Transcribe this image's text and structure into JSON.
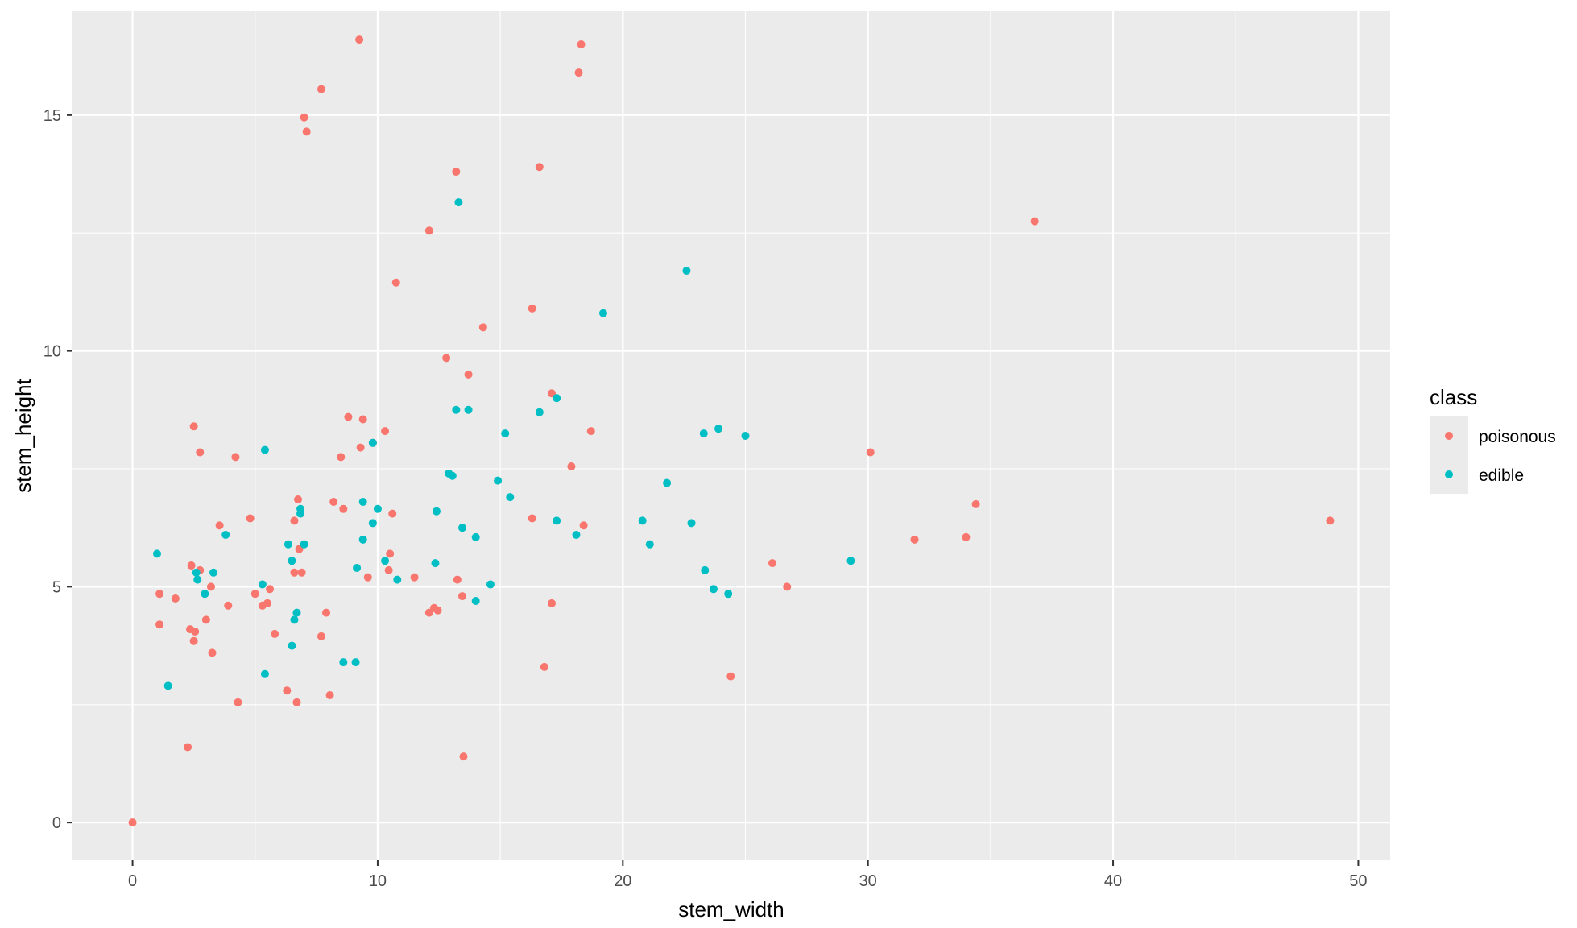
{
  "chart_data": {
    "type": "scatter",
    "title": "",
    "xlabel": "stem_width",
    "ylabel": "stem_height",
    "xlim": [
      -2.45,
      51.3
    ],
    "ylim": [
      -0.8,
      17.2
    ],
    "x_ticks": [
      0,
      10,
      20,
      30,
      40,
      50
    ],
    "x_minor_ticks": [
      5,
      15,
      25,
      35,
      45
    ],
    "y_ticks": [
      0,
      5,
      10,
      15
    ],
    "y_minor_ticks": [
      2.5,
      7.5,
      12.5
    ],
    "grid": true,
    "background": "#EBEBEB",
    "legend": {
      "title": "class",
      "position": "right",
      "entries": [
        {
          "label": "poisonous",
          "color": "#F8766D"
        },
        {
          "label": "edible",
          "color": "#00BFC4"
        }
      ]
    },
    "series": [
      {
        "name": "poisonous",
        "color": "#F8766D",
        "points": [
          [
            9.25,
            16.6
          ],
          [
            18.3,
            16.5
          ],
          [
            18.2,
            15.9
          ],
          [
            7.7,
            15.55
          ],
          [
            7.0,
            14.95
          ],
          [
            7.1,
            14.65
          ],
          [
            13.2,
            13.8
          ],
          [
            16.6,
            13.9
          ],
          [
            36.8,
            12.75
          ],
          [
            12.1,
            12.55
          ],
          [
            10.75,
            11.45
          ],
          [
            16.3,
            10.9
          ],
          [
            14.3,
            10.5
          ],
          [
            12.8,
            9.85
          ],
          [
            13.7,
            9.5
          ],
          [
            17.1,
            9.1
          ],
          [
            8.8,
            8.6
          ],
          [
            9.4,
            8.55
          ],
          [
            18.7,
            8.3
          ],
          [
            10.3,
            8.3
          ],
          [
            2.5,
            8.4
          ],
          [
            9.3,
            7.95
          ],
          [
            9.8,
            8.05
          ],
          [
            2.75,
            7.85
          ],
          [
            4.2,
            7.75
          ],
          [
            8.5,
            7.75
          ],
          [
            17.9,
            7.55
          ],
          [
            30.1,
            7.85
          ],
          [
            6.75,
            6.85
          ],
          [
            8.2,
            6.8
          ],
          [
            34.4,
            6.75
          ],
          [
            8.6,
            6.65
          ],
          [
            4.8,
            6.45
          ],
          [
            10.6,
            6.55
          ],
          [
            6.6,
            6.4
          ],
          [
            16.3,
            6.45
          ],
          [
            48.85,
            6.4
          ],
          [
            3.55,
            6.3
          ],
          [
            18.4,
            6.3
          ],
          [
            34.0,
            6.05
          ],
          [
            31.9,
            6.0
          ],
          [
            6.8,
            5.8
          ],
          [
            10.5,
            5.7
          ],
          [
            26.1,
            5.5
          ],
          [
            2.4,
            5.45
          ],
          [
            10.45,
            5.35
          ],
          [
            2.75,
            5.35
          ],
          [
            6.6,
            5.3
          ],
          [
            6.9,
            5.3
          ],
          [
            9.6,
            5.2
          ],
          [
            11.5,
            5.2
          ],
          [
            13.25,
            5.15
          ],
          [
            26.7,
            5.0
          ],
          [
            3.2,
            5.0
          ],
          [
            5.6,
            4.95
          ],
          [
            5.0,
            4.85
          ],
          [
            1.1,
            4.85
          ],
          [
            13.45,
            4.8
          ],
          [
            1.75,
            4.75
          ],
          [
            17.1,
            4.65
          ],
          [
            5.5,
            4.65
          ],
          [
            5.3,
            4.6
          ],
          [
            3.9,
            4.6
          ],
          [
            12.3,
            4.55
          ],
          [
            12.45,
            4.5
          ],
          [
            12.1,
            4.45
          ],
          [
            7.9,
            4.45
          ],
          [
            3.0,
            4.3
          ],
          [
            1.1,
            4.2
          ],
          [
            2.35,
            4.1
          ],
          [
            2.55,
            4.05
          ],
          [
            5.8,
            4.0
          ],
          [
            7.7,
            3.95
          ],
          [
            2.5,
            3.85
          ],
          [
            3.25,
            3.6
          ],
          [
            16.8,
            3.3
          ],
          [
            24.4,
            3.1
          ],
          [
            6.3,
            2.8
          ],
          [
            8.05,
            2.7
          ],
          [
            4.3,
            2.55
          ],
          [
            6.7,
            2.55
          ],
          [
            2.25,
            1.6
          ],
          [
            13.5,
            1.4
          ],
          [
            0.0,
            0.0
          ]
        ]
      },
      {
        "name": "edible",
        "color": "#00BFC4",
        "points": [
          [
            13.3,
            13.15
          ],
          [
            22.6,
            11.7
          ],
          [
            19.2,
            10.8
          ],
          [
            13.2,
            8.75
          ],
          [
            13.7,
            8.75
          ],
          [
            16.6,
            8.7
          ],
          [
            17.3,
            9.0
          ],
          [
            23.9,
            8.35
          ],
          [
            23.3,
            8.25
          ],
          [
            25.0,
            8.2
          ],
          [
            15.2,
            8.25
          ],
          [
            9.8,
            8.05
          ],
          [
            5.4,
            7.9
          ],
          [
            12.9,
            7.4
          ],
          [
            13.05,
            7.35
          ],
          [
            21.8,
            7.2
          ],
          [
            14.9,
            7.25
          ],
          [
            15.4,
            6.9
          ],
          [
            9.4,
            6.8
          ],
          [
            10.0,
            6.65
          ],
          [
            6.85,
            6.65
          ],
          [
            6.85,
            6.55
          ],
          [
            12.4,
            6.6
          ],
          [
            17.3,
            6.4
          ],
          [
            20.8,
            6.4
          ],
          [
            22.8,
            6.35
          ],
          [
            9.8,
            6.35
          ],
          [
            13.45,
            6.25
          ],
          [
            3.8,
            6.1
          ],
          [
            14.0,
            6.05
          ],
          [
            18.1,
            6.1
          ],
          [
            9.4,
            6.0
          ],
          [
            21.1,
            5.9
          ],
          [
            6.35,
            5.9
          ],
          [
            7.0,
            5.9
          ],
          [
            1.0,
            5.7
          ],
          [
            10.3,
            5.55
          ],
          [
            6.5,
            5.55
          ],
          [
            29.3,
            5.55
          ],
          [
            12.35,
            5.5
          ],
          [
            9.15,
            5.4
          ],
          [
            23.35,
            5.35
          ],
          [
            2.6,
            5.3
          ],
          [
            3.3,
            5.3
          ],
          [
            2.65,
            5.15
          ],
          [
            10.8,
            5.15
          ],
          [
            14.6,
            5.05
          ],
          [
            5.3,
            5.05
          ],
          [
            23.7,
            4.95
          ],
          [
            24.3,
            4.85
          ],
          [
            2.95,
            4.85
          ],
          [
            14.0,
            4.7
          ],
          [
            6.7,
            4.45
          ],
          [
            6.6,
            4.3
          ],
          [
            6.5,
            3.75
          ],
          [
            8.6,
            3.4
          ],
          [
            9.1,
            3.4
          ],
          [
            5.4,
            3.15
          ],
          [
            1.45,
            2.9
          ]
        ]
      }
    ]
  }
}
